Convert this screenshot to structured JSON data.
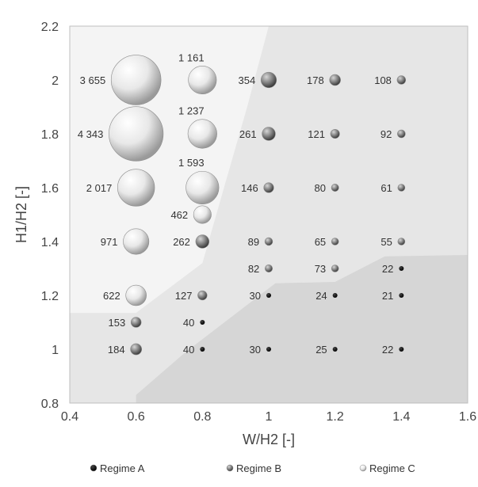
{
  "chart_data": {
    "type": "scatter",
    "xlabel": "W/H2 [-]",
    "ylabel": "H1/H2 [-]",
    "xlim": [
      0.4,
      1.6
    ],
    "ylim": [
      0.8,
      2.2
    ],
    "x_ticks": [
      "0.4",
      "0.6",
      "0.8",
      "1",
      "1.2",
      "1.4",
      "1.6"
    ],
    "y_ticks": [
      "0.8",
      "1",
      "1.2",
      "1.4",
      "1.6",
      "1.8",
      "2",
      "2.2"
    ],
    "grid": false,
    "legend_position": "bottom",
    "legend": [
      {
        "name": "Regime A",
        "color": "#000000"
      },
      {
        "name": "Regime B",
        "color": "#7a7a7a"
      },
      {
        "name": "Regime C",
        "color": "#dcdcdc"
      }
    ],
    "regions": {
      "regime_c_color": "#f4f4f4",
      "regime_b_color": "#e6e6e6",
      "regime_a_color": "#d6d6d6",
      "regime_c_boundary": [
        [
          0.4,
          1.135
        ],
        [
          0.6,
          1.135
        ],
        [
          0.8,
          1.32
        ],
        [
          0.935,
          1.9
        ],
        [
          1.0,
          2.2
        ]
      ],
      "regime_a_boundary": [
        [
          0.6,
          0.8
        ],
        [
          0.6,
          0.83
        ],
        [
          0.75,
          0.99
        ],
        [
          1.02,
          1.245
        ],
        [
          1.2,
          1.25
        ],
        [
          1.35,
          1.345
        ],
        [
          1.6,
          1.35
        ]
      ]
    },
    "series": [
      {
        "name": "Regime A",
        "points": [
          {
            "x": 0.8,
            "y": 1.1,
            "value": 40,
            "label": "40"
          },
          {
            "x": 0.8,
            "y": 1.0,
            "value": 40,
            "label": "40"
          },
          {
            "x": 1.0,
            "y": 1.2,
            "value": 30,
            "label": "30"
          },
          {
            "x": 1.0,
            "y": 1.0,
            "value": 30,
            "label": "30"
          },
          {
            "x": 1.2,
            "y": 1.2,
            "value": 24,
            "label": "24"
          },
          {
            "x": 1.2,
            "y": 1.0,
            "value": 25,
            "label": "25"
          },
          {
            "x": 1.4,
            "y": 1.3,
            "value": 22,
            "label": "22"
          },
          {
            "x": 1.4,
            "y": 1.2,
            "value": 21,
            "label": "21"
          },
          {
            "x": 1.4,
            "y": 1.0,
            "value": 22,
            "label": "22"
          }
        ]
      },
      {
        "name": "Regime B",
        "points": [
          {
            "x": 0.6,
            "y": 1.1,
            "value": 153,
            "label": "153"
          },
          {
            "x": 0.6,
            "y": 1.0,
            "value": 184,
            "label": "184"
          },
          {
            "x": 0.8,
            "y": 1.4,
            "value": 262,
            "label": "262"
          },
          {
            "x": 0.8,
            "y": 1.2,
            "value": 127,
            "label": "127"
          },
          {
            "x": 1.0,
            "y": 2.0,
            "value": 354,
            "label": "354"
          },
          {
            "x": 1.0,
            "y": 1.8,
            "value": 261,
            "label": "261"
          },
          {
            "x": 1.0,
            "y": 1.6,
            "value": 146,
            "label": "146"
          },
          {
            "x": 1.0,
            "y": 1.4,
            "value": 89,
            "label": "89"
          },
          {
            "x": 1.0,
            "y": 1.3,
            "value": 82,
            "label": "82"
          },
          {
            "x": 1.2,
            "y": 2.0,
            "value": 178,
            "label": "178"
          },
          {
            "x": 1.2,
            "y": 1.8,
            "value": 121,
            "label": "121"
          },
          {
            "x": 1.2,
            "y": 1.6,
            "value": 80,
            "label": "80"
          },
          {
            "x": 1.2,
            "y": 1.4,
            "value": 65,
            "label": "65"
          },
          {
            "x": 1.2,
            "y": 1.3,
            "value": 73,
            "label": "73"
          },
          {
            "x": 1.4,
            "y": 2.0,
            "value": 108,
            "label": "108"
          },
          {
            "x": 1.4,
            "y": 1.8,
            "value": 92,
            "label": "92"
          },
          {
            "x": 1.4,
            "y": 1.6,
            "value": 61,
            "label": "61"
          },
          {
            "x": 1.4,
            "y": 1.4,
            "value": 55,
            "label": "55"
          }
        ]
      },
      {
        "name": "Regime C",
        "points": [
          {
            "x": 0.6,
            "y": 2.0,
            "value": 3655,
            "label": "3 655"
          },
          {
            "x": 0.6,
            "y": 1.8,
            "value": 4343,
            "label": "4 343"
          },
          {
            "x": 0.6,
            "y": 1.6,
            "value": 2017,
            "label": "2 017"
          },
          {
            "x": 0.6,
            "y": 1.4,
            "value": 971,
            "label": "971"
          },
          {
            "x": 0.6,
            "y": 1.2,
            "value": 622,
            "label": "622"
          },
          {
            "x": 0.8,
            "y": 2.0,
            "value": 1161,
            "label": "1 161"
          },
          {
            "x": 0.8,
            "y": 1.8,
            "value": 1237,
            "label": "1 237"
          },
          {
            "x": 0.8,
            "y": 1.6,
            "value": 1593,
            "label": "1 593"
          },
          {
            "x": 0.8,
            "y": 1.5,
            "value": 462,
            "label": "462"
          }
        ]
      }
    ]
  }
}
